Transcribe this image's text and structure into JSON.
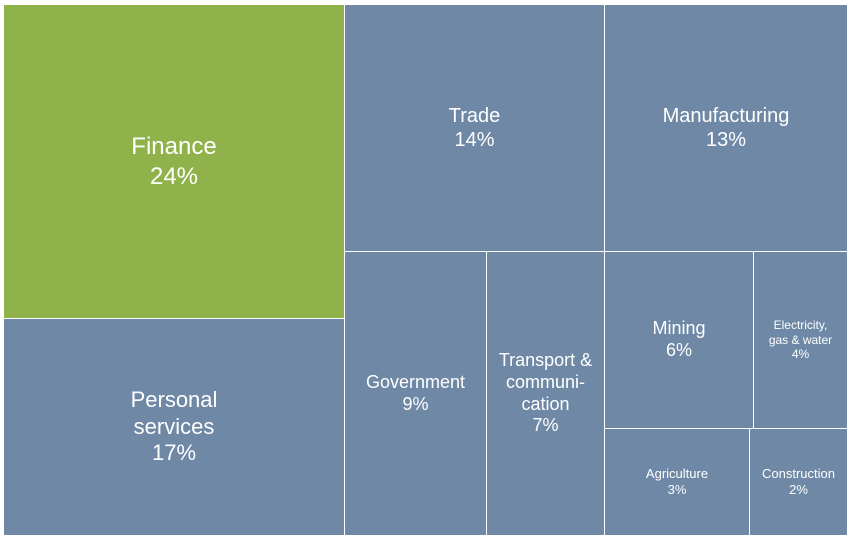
{
  "chart_data": {
    "type": "treemap",
    "colors": {
      "highlight": "#8FB34A",
      "default": "#6E88A6",
      "border": "#FFFFFF"
    },
    "segments": [
      {
        "id": "finance",
        "label": "Finance",
        "value": 24,
        "value_label": "24%",
        "highlight": true
      },
      {
        "id": "personal-services",
        "label": "Personal\nservices",
        "value": 17,
        "value_label": "17%"
      },
      {
        "id": "trade",
        "label": "Trade",
        "value": 14,
        "value_label": "14%"
      },
      {
        "id": "manufacturing",
        "label": "Manufacturing",
        "value": 13,
        "value_label": "13%"
      },
      {
        "id": "government",
        "label": "Government",
        "value": 9,
        "value_label": "9%"
      },
      {
        "id": "transport-communication",
        "label": "Transport &\ncommuni-\ncation",
        "value": 7,
        "value_label": "7%"
      },
      {
        "id": "mining",
        "label": "Mining",
        "value": 6,
        "value_label": "6%"
      },
      {
        "id": "electricity-gas-water",
        "label": "Electricity,\ngas & water",
        "value": 4,
        "value_label": "4%"
      },
      {
        "id": "agriculture",
        "label": "Agriculture",
        "value": 3,
        "value_label": "3%"
      },
      {
        "id": "construction",
        "label": "Construction",
        "value": 2,
        "value_label": "2%"
      }
    ]
  }
}
